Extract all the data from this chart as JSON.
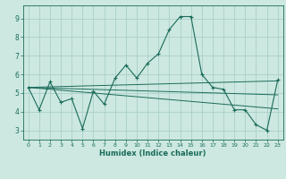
{
  "title": "",
  "xlabel": "Humidex (Indice chaleur)",
  "xlim": [
    -0.5,
    23.5
  ],
  "ylim": [
    2.5,
    9.7
  ],
  "yticks": [
    3,
    4,
    5,
    6,
    7,
    8,
    9
  ],
  "xticks": [
    0,
    1,
    2,
    3,
    4,
    5,
    6,
    7,
    8,
    9,
    10,
    11,
    12,
    13,
    14,
    15,
    16,
    17,
    18,
    19,
    20,
    21,
    22,
    23
  ],
  "background_color": "#cce8e0",
  "grid_color": "#aacfc8",
  "line_color": "#1a6b5a",
  "series": [
    {
      "x": [
        0,
        1,
        2,
        3,
        4,
        5,
        6,
        7,
        8,
        9,
        10,
        11,
        12,
        13,
        14,
        15,
        16,
        17,
        18,
        19,
        20,
        21,
        22,
        23
      ],
      "y": [
        5.3,
        4.1,
        5.6,
        4.5,
        4.7,
        3.1,
        5.1,
        4.4,
        5.8,
        6.5,
        5.8,
        6.6,
        7.1,
        8.4,
        9.1,
        9.1,
        6.0,
        5.3,
        5.2,
        4.1,
        4.1,
        3.3,
        3.0,
        5.7
      ],
      "marker": true
    },
    {
      "x": [
        0,
        23
      ],
      "y": [
        5.3,
        5.65
      ],
      "marker": false
    },
    {
      "x": [
        0,
        23
      ],
      "y": [
        5.3,
        4.9
      ],
      "marker": false
    },
    {
      "x": [
        0,
        23
      ],
      "y": [
        5.3,
        4.15
      ],
      "marker": false
    }
  ]
}
